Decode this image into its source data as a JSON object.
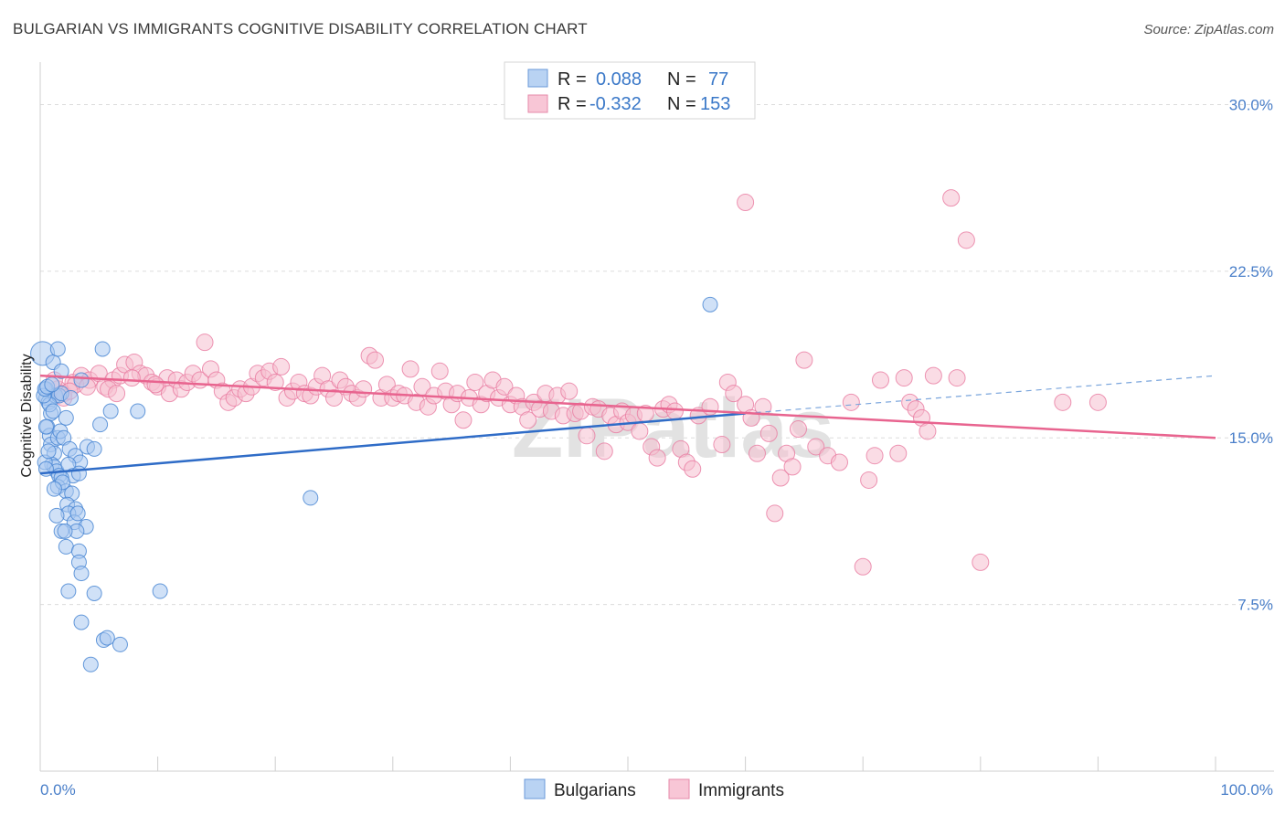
{
  "header": {
    "title": "BULGARIAN VS IMMIGRANTS COGNITIVE DISABILITY CORRELATION CHART",
    "source": "Source: ZipAtlas.com"
  },
  "legend_box": {
    "rows": [
      {
        "r_label": "R =",
        "r_value": "0.088",
        "n_label": "N =",
        "n_value": "77",
        "color": "#9cc3f0"
      },
      {
        "r_label": "R =",
        "r_value": "-0.332",
        "n_label": "N =",
        "n_value": "153",
        "color": "#f5b3c8"
      }
    ]
  },
  "bottom_legend": {
    "items": [
      {
        "label": "Bulgarians",
        "color": "#9cc3f0"
      },
      {
        "label": "Immigrants",
        "color": "#f5b3c8"
      }
    ]
  },
  "watermark": "ZIPatlas",
  "chart_data": {
    "type": "scatter",
    "title": "BULGARIAN VS IMMIGRANTS COGNITIVE DISABILITY CORRELATION CHART",
    "xlabel": "",
    "ylabel": "Cognitive Disability",
    "xlim": [
      0,
      100
    ],
    "ylim": [
      0,
      31.5
    ],
    "x_tick_labels": [
      "0.0%",
      "100.0%"
    ],
    "y_ticks": [
      7.5,
      15.0,
      22.5,
      30.0
    ],
    "y_tick_labels": [
      "7.5%",
      "15.0%",
      "22.5%",
      "30.0%"
    ],
    "grid": true,
    "legend_position": "top-center",
    "series": [
      {
        "name": "Bulgarians",
        "color": "#4a87d4",
        "fill": "#a9c9f0",
        "trend": {
          "x": [
            0,
            60
          ],
          "y": [
            13.4,
            16.1
          ],
          "dashed_extension": {
            "x": [
              60,
              100
            ],
            "y": [
              16.1,
              17.8
            ]
          },
          "line_color": "#2f6cc7"
        },
        "points": [
          [
            0.2,
            18.8
          ],
          [
            0.5,
            17.2
          ],
          [
            0.5,
            16.8
          ],
          [
            0.7,
            16.6
          ],
          [
            0.9,
            16.1
          ],
          [
            0.6,
            15.5
          ],
          [
            0.8,
            15.1
          ],
          [
            1.1,
            18.4
          ],
          [
            1.5,
            19.0
          ],
          [
            1.8,
            18.0
          ],
          [
            0.9,
            14.7
          ],
          [
            1.2,
            14.3
          ],
          [
            1.5,
            15.0
          ],
          [
            1.7,
            15.3
          ],
          [
            2.0,
            15.0
          ],
          [
            2.2,
            15.9
          ],
          [
            1.0,
            13.8
          ],
          [
            1.2,
            13.7
          ],
          [
            1.4,
            13.5
          ],
          [
            1.6,
            13.3
          ],
          [
            1.3,
            16.9
          ],
          [
            1.6,
            16.9
          ],
          [
            1.8,
            17.0
          ],
          [
            0.8,
            16.5
          ],
          [
            1.1,
            16.2
          ],
          [
            2.5,
            14.5
          ],
          [
            3.0,
            14.2
          ],
          [
            3.4,
            13.9
          ],
          [
            4.0,
            14.6
          ],
          [
            4.6,
            14.5
          ],
          [
            2.4,
            13.8
          ],
          [
            2.8,
            13.3
          ],
          [
            3.3,
            13.4
          ],
          [
            1.8,
            13.2
          ],
          [
            1.5,
            12.8
          ],
          [
            2.2,
            12.6
          ],
          [
            2.7,
            12.5
          ],
          [
            2.3,
            12.0
          ],
          [
            3.0,
            11.8
          ],
          [
            2.4,
            11.6
          ],
          [
            2.9,
            11.2
          ],
          [
            3.2,
            11.6
          ],
          [
            1.4,
            11.5
          ],
          [
            3.9,
            11.0
          ],
          [
            3.1,
            10.8
          ],
          [
            1.8,
            10.8
          ],
          [
            2.1,
            10.8
          ],
          [
            2.2,
            10.1
          ],
          [
            3.3,
            9.9
          ],
          [
            3.3,
            9.4
          ],
          [
            3.5,
            8.9
          ],
          [
            2.4,
            8.1
          ],
          [
            4.6,
            8.0
          ],
          [
            5.3,
            19.0
          ],
          [
            6.0,
            16.2
          ],
          [
            5.1,
            15.6
          ],
          [
            8.3,
            16.2
          ],
          [
            10.2,
            8.1
          ],
          [
            3.5,
            6.7
          ],
          [
            5.4,
            5.9
          ],
          [
            5.7,
            6.0
          ],
          [
            6.8,
            5.7
          ],
          [
            4.3,
            4.8
          ],
          [
            23.0,
            12.3
          ],
          [
            57.0,
            21.0
          ],
          [
            0.3,
            16.9
          ],
          [
            0.4,
            17.2
          ],
          [
            0.6,
            17.3
          ],
          [
            0.4,
            13.9
          ],
          [
            0.7,
            14.4
          ],
          [
            0.5,
            15.5
          ],
          [
            2.6,
            16.8
          ],
          [
            1.0,
            17.4
          ],
          [
            3.5,
            17.6
          ],
          [
            0.5,
            13.6
          ],
          [
            1.9,
            13.0
          ],
          [
            1.2,
            12.7
          ]
        ]
      },
      {
        "name": "Immigrants",
        "color": "#e87ba0",
        "fill": "#f6bfd0",
        "trend": {
          "x": [
            0,
            100
          ],
          "y": [
            17.8,
            15.0
          ],
          "line_color": "#e8648f"
        },
        "points": [
          [
            1.5,
            17.2
          ],
          [
            2.0,
            17.0
          ],
          [
            2.8,
            17.5
          ],
          [
            3.5,
            17.8
          ],
          [
            4.2,
            17.6
          ],
          [
            5.0,
            17.9
          ],
          [
            5.5,
            17.3
          ],
          [
            6.2,
            17.6
          ],
          [
            6.8,
            17.8
          ],
          [
            7.2,
            18.3
          ],
          [
            8.0,
            18.4
          ],
          [
            8.5,
            17.9
          ],
          [
            9.0,
            17.8
          ],
          [
            9.5,
            17.5
          ],
          [
            10.0,
            17.3
          ],
          [
            10.8,
            17.7
          ],
          [
            11.0,
            17.0
          ],
          [
            11.6,
            17.6
          ],
          [
            12.0,
            17.2
          ],
          [
            12.5,
            17.5
          ],
          [
            13.0,
            17.9
          ],
          [
            13.6,
            17.6
          ],
          [
            14.0,
            19.3
          ],
          [
            14.5,
            18.1
          ],
          [
            15.0,
            17.6
          ],
          [
            15.5,
            17.1
          ],
          [
            16.0,
            16.6
          ],
          [
            16.5,
            16.8
          ],
          [
            17.0,
            17.2
          ],
          [
            17.5,
            17.0
          ],
          [
            18.0,
            17.3
          ],
          [
            18.5,
            17.9
          ],
          [
            19.0,
            17.7
          ],
          [
            19.5,
            18.0
          ],
          [
            20.0,
            17.5
          ],
          [
            20.5,
            18.2
          ],
          [
            21.0,
            16.8
          ],
          [
            21.5,
            17.1
          ],
          [
            22.0,
            17.5
          ],
          [
            22.5,
            17.0
          ],
          [
            23.0,
            16.9
          ],
          [
            23.5,
            17.3
          ],
          [
            24.0,
            17.8
          ],
          [
            24.5,
            17.2
          ],
          [
            25.0,
            16.8
          ],
          [
            25.5,
            17.6
          ],
          [
            26.0,
            17.3
          ],
          [
            26.5,
            17.0
          ],
          [
            27.0,
            16.8
          ],
          [
            27.5,
            17.2
          ],
          [
            28.0,
            18.7
          ],
          [
            28.5,
            18.5
          ],
          [
            29.0,
            16.8
          ],
          [
            29.5,
            17.4
          ],
          [
            30.0,
            16.8
          ],
          [
            30.5,
            17.0
          ],
          [
            31.0,
            16.9
          ],
          [
            31.5,
            18.1
          ],
          [
            32.0,
            16.6
          ],
          [
            32.5,
            17.3
          ],
          [
            33.0,
            16.4
          ],
          [
            33.5,
            16.9
          ],
          [
            34.0,
            18.0
          ],
          [
            34.5,
            17.1
          ],
          [
            35.0,
            16.5
          ],
          [
            35.5,
            17.0
          ],
          [
            36.0,
            15.8
          ],
          [
            36.5,
            16.8
          ],
          [
            37.0,
            17.5
          ],
          [
            37.5,
            16.5
          ],
          [
            38.0,
            17.0
          ],
          [
            38.5,
            17.6
          ],
          [
            39.0,
            16.8
          ],
          [
            39.5,
            17.3
          ],
          [
            40.0,
            16.5
          ],
          [
            40.5,
            16.9
          ],
          [
            41.0,
            16.4
          ],
          [
            41.5,
            15.8
          ],
          [
            42.0,
            16.6
          ],
          [
            42.5,
            16.3
          ],
          [
            43.0,
            17.0
          ],
          [
            43.5,
            16.2
          ],
          [
            44.0,
            16.9
          ],
          [
            44.5,
            16.0
          ],
          [
            45.0,
            17.1
          ],
          [
            45.5,
            16.1
          ],
          [
            46.0,
            16.2
          ],
          [
            46.5,
            15.1
          ],
          [
            47.0,
            16.4
          ],
          [
            47.5,
            16.3
          ],
          [
            48.0,
            14.4
          ],
          [
            48.5,
            16.0
          ],
          [
            49.0,
            15.6
          ],
          [
            49.5,
            16.2
          ],
          [
            50.0,
            15.7
          ],
          [
            50.5,
            16.0
          ],
          [
            51.0,
            15.3
          ],
          [
            51.5,
            16.1
          ],
          [
            52.0,
            14.6
          ],
          [
            52.5,
            14.1
          ],
          [
            53.0,
            16.3
          ],
          [
            53.5,
            16.5
          ],
          [
            54.0,
            16.2
          ],
          [
            54.5,
            14.5
          ],
          [
            55.0,
            13.9
          ],
          [
            55.5,
            13.6
          ],
          [
            56.0,
            16.0
          ],
          [
            57.0,
            16.4
          ],
          [
            58.0,
            14.7
          ],
          [
            58.5,
            17.5
          ],
          [
            59.0,
            17.0
          ],
          [
            60.0,
            16.5
          ],
          [
            60.5,
            15.9
          ],
          [
            61.0,
            14.3
          ],
          [
            61.5,
            16.4
          ],
          [
            62.0,
            15.2
          ],
          [
            62.5,
            11.6
          ],
          [
            63.0,
            13.2
          ],
          [
            63.5,
            14.3
          ],
          [
            64.0,
            13.7
          ],
          [
            64.5,
            15.4
          ],
          [
            65.0,
            18.5
          ],
          [
            66.0,
            14.6
          ],
          [
            67.0,
            14.2
          ],
          [
            68.0,
            13.9
          ],
          [
            69.0,
            16.6
          ],
          [
            70.0,
            9.2
          ],
          [
            70.5,
            13.1
          ],
          [
            71.0,
            14.2
          ],
          [
            71.5,
            17.6
          ],
          [
            73.0,
            14.3
          ],
          [
            73.5,
            17.7
          ],
          [
            74.0,
            16.6
          ],
          [
            74.5,
            16.3
          ],
          [
            75.0,
            15.9
          ],
          [
            75.5,
            15.3
          ],
          [
            76.0,
            17.8
          ],
          [
            78.0,
            17.7
          ],
          [
            80.0,
            9.4
          ],
          [
            87.0,
            16.6
          ],
          [
            90.0,
            16.6
          ],
          [
            60.0,
            25.6
          ],
          [
            77.5,
            25.8
          ],
          [
            78.8,
            23.9
          ],
          [
            2.0,
            16.8
          ],
          [
            3.0,
            17.4
          ],
          [
            4.0,
            17.3
          ],
          [
            1.2,
            17.6
          ],
          [
            2.5,
            17.1
          ],
          [
            5.8,
            17.2
          ],
          [
            6.5,
            17.0
          ],
          [
            7.8,
            17.7
          ],
          [
            9.8,
            17.4
          ]
        ]
      }
    ]
  }
}
